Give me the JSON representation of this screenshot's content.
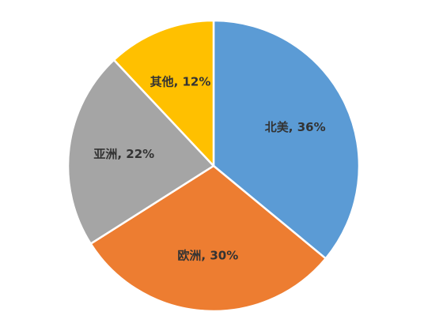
{
  "chart_data": {
    "type": "pie",
    "title": "",
    "start_angle_deg": 0,
    "direction": "clockwise",
    "slices": [
      {
        "label": "北美",
        "value": 36,
        "display": "北美, 36%",
        "color": "#5b9bd5"
      },
      {
        "label": "欧洲",
        "value": 30,
        "display": "欧洲, 30%",
        "color": "#ed7d31"
      },
      {
        "label": "亚洲",
        "value": 22,
        "display": "亚洲, 22%",
        "color": "#a5a5a5"
      },
      {
        "label": "其他",
        "value": 12,
        "display": "其他, 12%",
        "color": "#ffc000"
      }
    ]
  }
}
